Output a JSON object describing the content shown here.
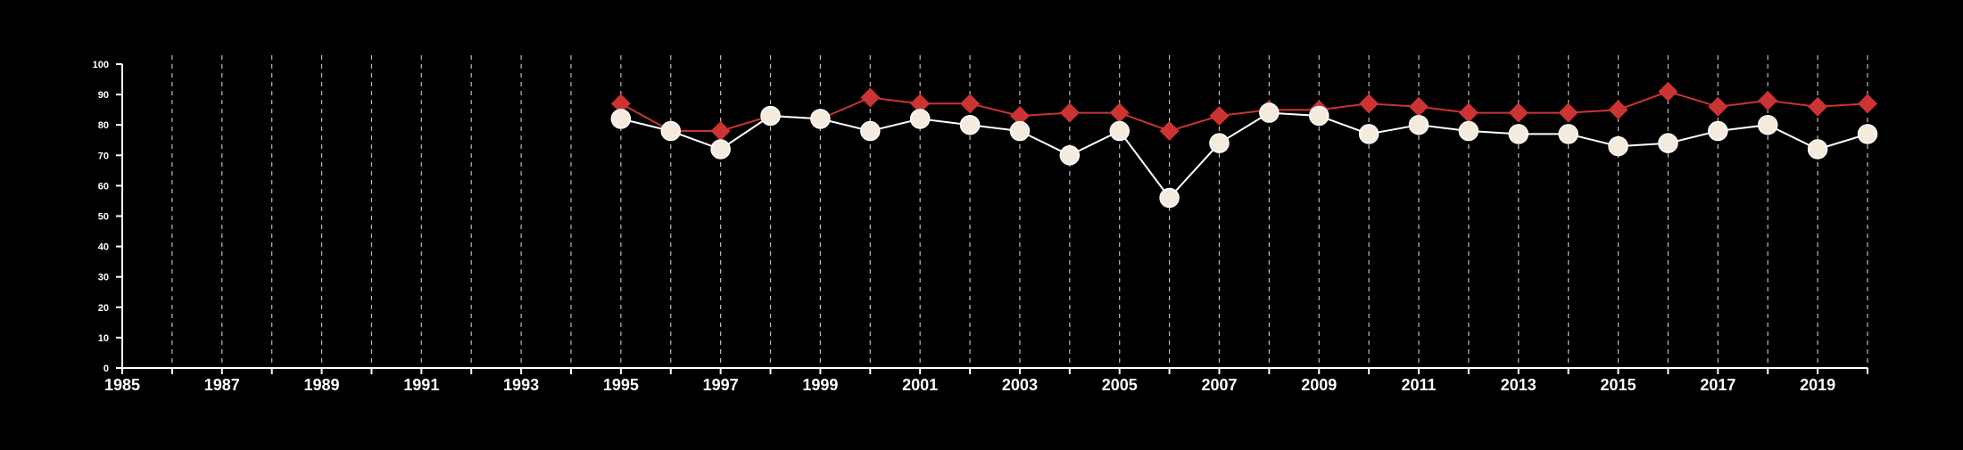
{
  "chart_data": {
    "type": "line",
    "title": "",
    "xlabel": "",
    "ylabel": "",
    "xlim": [
      1985,
      2020
    ],
    "ylim": [
      0,
      100
    ],
    "x_ticks": [
      1985,
      1987,
      1989,
      1991,
      1993,
      1995,
      1997,
      1999,
      2001,
      2003,
      2005,
      2007,
      2009,
      2011,
      2013,
      2015,
      2017,
      2019
    ],
    "y_ticks": [
      0,
      10,
      20,
      30,
      40,
      50,
      60,
      70,
      80,
      90,
      100
    ],
    "grid": {
      "vertical": true,
      "horizontal": false,
      "style": "dashed"
    },
    "legend": "none",
    "x": [
      1995,
      1996,
      1997,
      1998,
      1999,
      2000,
      2001,
      2002,
      2003,
      2004,
      2005,
      2006,
      2007,
      2008,
      2009,
      2010,
      2011,
      2012,
      2013,
      2014,
      2015,
      2016,
      2017,
      2018,
      2019,
      2020
    ],
    "series": [
      {
        "marker": "diamond",
        "color": "#cc3333",
        "values": [
          87,
          78,
          78,
          83,
          82,
          89,
          87,
          87,
          83,
          84,
          84,
          78,
          83,
          85,
          85,
          87,
          86,
          84,
          84,
          84,
          85,
          91,
          86,
          88,
          86,
          87
        ]
      },
      {
        "marker": "circle",
        "color": "#ffffff",
        "marker_fill": "#f5ebdc",
        "values": [
          82,
          78,
          72,
          83,
          82,
          78,
          82,
          80,
          78,
          70,
          78,
          56,
          74,
          84,
          83,
          77,
          80,
          78,
          77,
          77,
          73,
          74,
          78,
          80,
          72,
          77
        ]
      }
    ]
  }
}
